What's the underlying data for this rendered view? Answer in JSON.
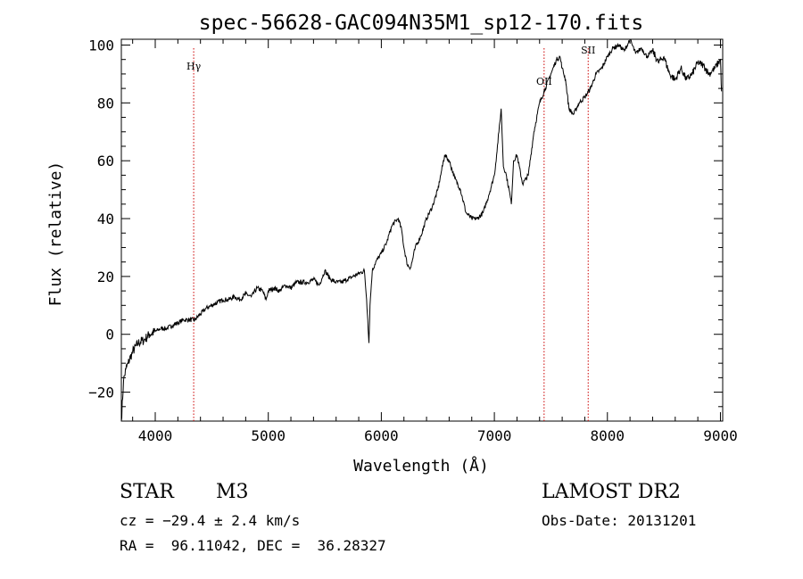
{
  "chart_data": {
    "type": "line",
    "title": "spec-56628-GAC094N35M1_sp12-170.fits",
    "xlabel": "Wavelength (Å)",
    "ylabel": "Flux (relative)",
    "xlim": [
      3700,
      9020
    ],
    "ylim": [
      -30,
      102
    ],
    "xticks": [
      4000,
      5000,
      6000,
      7000,
      8000,
      9000
    ],
    "yticks": [
      -20,
      0,
      20,
      40,
      60,
      80,
      100
    ],
    "grid": false,
    "line_color": "#000000",
    "marker_color": "#cc0000",
    "lines": [
      {
        "label": "Hγ",
        "x": 4340
      },
      {
        "label": "OII",
        "x": 7440
      },
      {
        "label": "SII",
        "x": 7830
      }
    ],
    "series": [
      {
        "x": [
          3700,
          3720,
          3740,
          3760,
          3780,
          3800,
          3850,
          3900,
          3950,
          4000,
          4050,
          4100,
          4150,
          4200,
          4250,
          4300,
          4350,
          4400,
          4450,
          4500,
          4550,
          4600,
          4650,
          4700,
          4750,
          4800,
          4850,
          4900,
          4950,
          4980,
          5000,
          5050,
          5100,
          5150,
          5200,
          5250,
          5300,
          5350,
          5400,
          5450,
          5500,
          5550,
          5600,
          5650,
          5700,
          5750,
          5800,
          5850,
          5870,
          5880,
          5890,
          5900,
          5920,
          5950,
          6000,
          6050,
          6080,
          6100,
          6150,
          6180,
          6200,
          6230,
          6260,
          6300,
          6350,
          6400,
          6450,
          6500,
          6530,
          6560,
          6600,
          6650,
          6700,
          6750,
          6800,
          6850,
          6900,
          6950,
          7000,
          7020,
          7040,
          7060,
          7080,
          7100,
          7130,
          7150,
          7170,
          7200,
          7250,
          7300,
          7350,
          7400,
          7450,
          7500,
          7550,
          7580,
          7600,
          7630,
          7660,
          7700,
          7750,
          7800,
          7850,
          7900,
          7950,
          8000,
          8050,
          8100,
          8150,
          8200,
          8250,
          8300,
          8350,
          8400,
          8450,
          8500,
          8550,
          8600,
          8650,
          8700,
          8750,
          8800,
          8850,
          8900,
          8950,
          9000,
          9010
        ],
        "values": [
          -30,
          -16,
          -12,
          -10,
          -8,
          -6,
          -3,
          -2,
          0,
          1,
          2,
          2,
          3,
          4,
          5,
          5,
          5,
          7,
          9,
          10,
          11,
          12,
          12,
          13,
          12,
          14,
          13,
          16,
          15,
          12,
          15,
          16,
          15,
          17,
          16,
          18,
          18,
          18,
          19,
          17,
          22,
          19,
          18,
          18,
          19,
          20,
          21,
          22,
          12,
          5,
          -3,
          10,
          22,
          25,
          28,
          32,
          36,
          38,
          40,
          36,
          30,
          24,
          23,
          30,
          34,
          40,
          44,
          50,
          56,
          62,
          60,
          54,
          50,
          42,
          40,
          40,
          42,
          48,
          55,
          62,
          70,
          78,
          58,
          56,
          50,
          45,
          60,
          62,
          52,
          55,
          70,
          80,
          85,
          90,
          95,
          96,
          92,
          88,
          78,
          76,
          80,
          82,
          85,
          90,
          92,
          96,
          99,
          100,
          98,
          102,
          97,
          99,
          96,
          98,
          94,
          96,
          90,
          88,
          92,
          88,
          90,
          94,
          93,
          90,
          92,
          95,
          84
        ]
      }
    ]
  },
  "info": {
    "class": "STAR",
    "subclass": "M3",
    "survey": "LAMOST DR2",
    "cz": "cz = −29.4 ± 2.4 km/s",
    "obs_date": "Obs-Date: 20131201",
    "radec": "RA =  96.11042, DEC =  36.28327"
  }
}
